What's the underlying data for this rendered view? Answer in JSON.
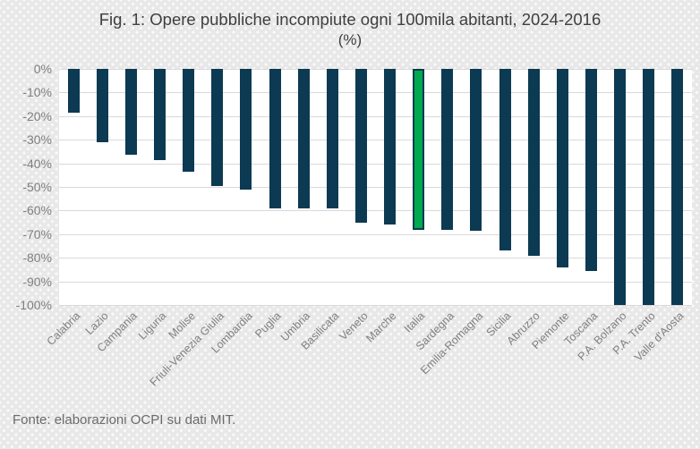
{
  "source_note": "Fonte: elaborazioni OCPI su dati MIT.",
  "colors": {
    "bar": "#0c3a52",
    "highlight": "#00a850",
    "highlight_border": "#0c3a52",
    "gridline": "#d9d9d9",
    "axis_text": "#7f7f7f",
    "title_text": "#3f3f3f",
    "source_text": "#6b6b6b",
    "background": "#e8e8e8",
    "background_dot": "#fafafa",
    "plot_background": "#ffffff"
  },
  "chart_data": {
    "type": "bar",
    "title": "Fig. 1: Opere pubbliche incompiute ogni 100mila abitanti, 2024-2016",
    "subtitle": "(%)",
    "categories": [
      "Calabria",
      "Lazio",
      "Campania",
      "Liguria",
      "Molise",
      "Friuli-Venezia Giulia",
      "Lombardia",
      "Puglia",
      "Umbria",
      "Basilicata",
      "Veneto",
      "Marche",
      "Italia",
      "Sardegna",
      "Emilia-Romagna",
      "Sicilia",
      "Abruzzo",
      "Piemonte",
      "Toscana",
      "P.A. Bolzano",
      "P.A. Trento",
      "Valle d'Aosta"
    ],
    "values": [
      -18.5,
      -31,
      -36.5,
      -38.5,
      -43.5,
      -49.5,
      -51,
      -59,
      -59,
      -59,
      -65,
      -66,
      -68,
      -68,
      -68.5,
      -77,
      -79,
      -84,
      -85.5,
      -100,
      -100,
      -100
    ],
    "highlight_category": "Italia",
    "xlabel": "",
    "ylabel": "",
    "ylim": [
      -100,
      0
    ],
    "y_ticks": [
      "0%",
      "-10%",
      "-20%",
      "-30%",
      "-40%",
      "-50%",
      "-60%",
      "-70%",
      "-80%",
      "-90%",
      "-100%"
    ],
    "grid": true,
    "legend": false,
    "x_label_rotation_deg": -45
  }
}
